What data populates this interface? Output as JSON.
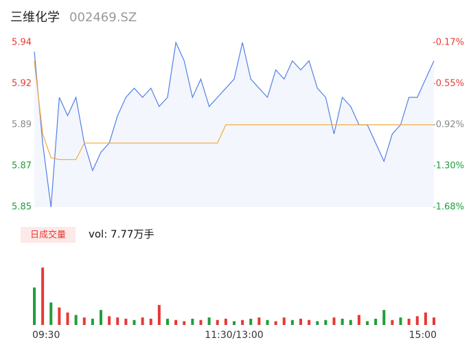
{
  "chart_data": {
    "type": "intraday",
    "title": "三维化学",
    "subtitle": "002469.SZ",
    "xlim": [
      0,
      48
    ],
    "xticks": [
      {
        "value": 0,
        "label": "09:30"
      },
      {
        "value": 24,
        "label": "11:30/13:00"
      },
      {
        "value": 48,
        "label": "15:00"
      }
    ],
    "x": [
      0,
      1,
      2,
      3,
      4,
      5,
      6,
      7,
      8,
      9,
      10,
      11,
      12,
      13,
      14,
      15,
      16,
      17,
      18,
      19,
      20,
      21,
      22,
      23,
      24,
      25,
      26,
      27,
      28,
      29,
      30,
      31,
      32,
      33,
      34,
      35,
      36,
      37,
      38,
      39,
      40,
      41,
      42,
      43,
      44,
      45,
      46,
      47,
      48
    ],
    "ylim": [
      5.85,
      5.94
    ],
    "yticks": [
      {
        "value": 5.94,
        "label": "5.94"
      },
      {
        "value": 5.9175,
        "label": "5.92"
      },
      {
        "value": 5.895,
        "label": "5.89"
      },
      {
        "value": 5.8725,
        "label": "5.87"
      },
      {
        "value": 5.85,
        "label": "5.85"
      }
    ],
    "ytick_colors": [
      "#e53935",
      "#e53935",
      "#888888",
      "#1e9e3a",
      "#1e9e3a"
    ],
    "y2lim": [
      -1.681,
      -0.168
    ],
    "y2ticks": [
      {
        "value": -0.168,
        "label": "-0.17%"
      },
      {
        "value": -0.546,
        "label": "-0.55%"
      },
      {
        "value": -0.924,
        "label": "-0.92%"
      },
      {
        "value": -1.303,
        "label": "-1.30%"
      },
      {
        "value": -1.681,
        "label": "-1.68%"
      }
    ],
    "series": [
      {
        "color": "#4f7fe8",
        "values": [
          5.935,
          5.885,
          5.85,
          5.91,
          5.9,
          5.91,
          5.885,
          5.87,
          5.88,
          5.885,
          5.9,
          5.91,
          5.915,
          5.91,
          5.915,
          5.905,
          5.91,
          5.94,
          5.93,
          5.91,
          5.92,
          5.905,
          5.91,
          5.915,
          5.92,
          5.94,
          5.92,
          5.915,
          5.91,
          5.925,
          5.92,
          5.93,
          5.925,
          5.93,
          5.915,
          5.91,
          5.89,
          5.91,
          5.905,
          5.895,
          5.895,
          5.885,
          5.875,
          5.89,
          5.895,
          5.91,
          5.91,
          5.92,
          5.93
        ]
      },
      {
        "color": "#f2a93b",
        "values": [
          5.93,
          5.89,
          5.877,
          5.876,
          5.876,
          5.876,
          5.885,
          5.885,
          5.885,
          5.885,
          5.885,
          5.885,
          5.885,
          5.885,
          5.885,
          5.885,
          5.885,
          5.885,
          5.885,
          5.885,
          5.885,
          5.885,
          5.885,
          5.895,
          5.895,
          5.895,
          5.895,
          5.895,
          5.895,
          5.895,
          5.895,
          5.895,
          5.895,
          5.895,
          5.895,
          5.895,
          5.895,
          5.895,
          5.895,
          5.895,
          5.895,
          5.895,
          5.895,
          5.895,
          5.895,
          5.895,
          5.895,
          5.895,
          5.895
        ]
      }
    ],
    "volume_title": "日成交量",
    "volume_label": "vol: 7.77万手",
    "volume_ylim": [
      0,
      2500
    ],
    "volume": [
      1500,
      2300,
      900,
      700,
      500,
      400,
      300,
      250,
      600,
      350,
      300,
      250,
      200,
      300,
      250,
      800,
      250,
      200,
      150,
      250,
      200,
      300,
      200,
      250,
      150,
      200,
      250,
      300,
      200,
      150,
      300,
      200,
      250,
      200,
      150,
      200,
      300,
      250,
      200,
      400,
      150,
      250,
      600,
      200,
      300,
      250,
      350,
      500,
      300
    ],
    "volume_colors": [
      "#1e9e3a",
      "#e53935",
      "#1e9e3a",
      "#e53935",
      "#e53935",
      "#1e9e3a",
      "#e53935",
      "#1e9e3a",
      "#1e9e3a",
      "#e53935",
      "#e53935",
      "#e53935",
      "#1e9e3a",
      "#e53935",
      "#e53935",
      "#e53935",
      "#1e9e3a",
      "#e53935",
      "#e53935",
      "#1e9e3a",
      "#e53935",
      "#1e9e3a",
      "#e53935",
      "#e53935",
      "#1e9e3a",
      "#e53935",
      "#1e9e3a",
      "#e53935",
      "#1e9e3a",
      "#e53935",
      "#e53935",
      "#1e9e3a",
      "#e53935",
      "#e53935",
      "#1e9e3a",
      "#1e9e3a",
      "#e53935",
      "#1e9e3a",
      "#1e9e3a",
      "#e53935",
      "#1e9e3a",
      "#1e9e3a",
      "#1e9e3a",
      "#e53935",
      "#1e9e3a",
      "#e53935",
      "#e53935",
      "#e53935",
      "#e53935"
    ]
  }
}
